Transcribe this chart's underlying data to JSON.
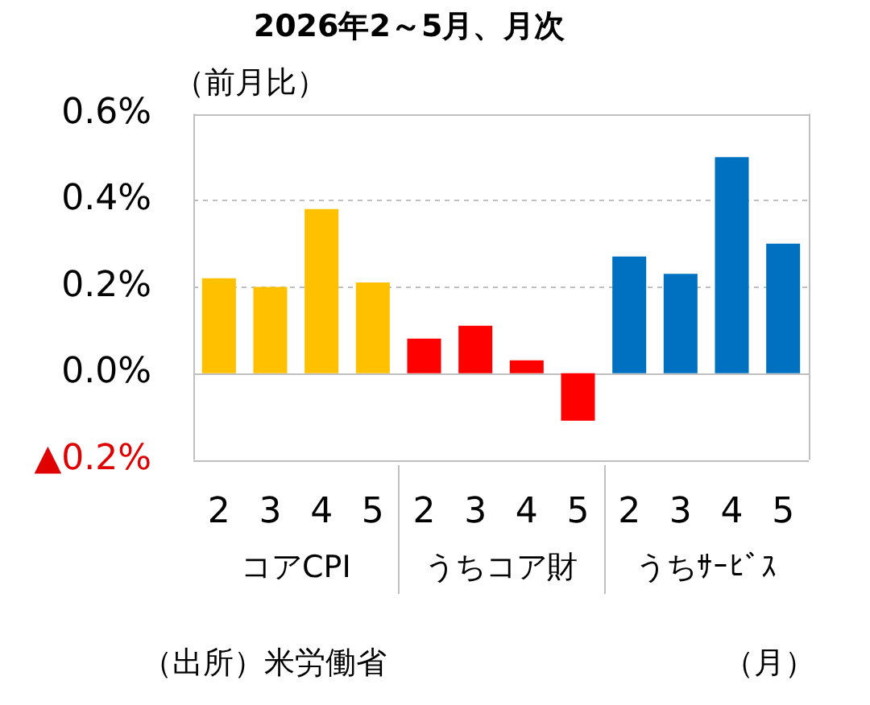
{
  "chart_data": {
    "type": "bar",
    "title": "2026年2～5月、月次",
    "ylabel": "（前月比）",
    "categories": [
      "2",
      "3",
      "4",
      "5",
      "2",
      "3",
      "4",
      "5",
      "2",
      "3",
      "4",
      "5"
    ],
    "values": [
      0.22,
      0.2,
      0.38,
      0.21,
      0.08,
      0.11,
      0.03,
      -0.11,
      0.27,
      0.23,
      0.5,
      0.3
    ],
    "colors": [
      "#ffc000",
      "#ffc000",
      "#ffc000",
      "#ffc000",
      "#ff0000",
      "#ff0000",
      "#ff0000",
      "#ff0000",
      "#0070c0",
      "#0070c0",
      "#0070c0",
      "#0070c0"
    ],
    "ylim": [
      -0.2,
      0.6
    ],
    "yticks": [
      {
        "value": -0.2,
        "label": "▲0.2%"
      },
      {
        "value": 0,
        "label": "0.0%"
      },
      {
        "value": 0.2,
        "label": "0.2%"
      },
      {
        "value": 0.4,
        "label": "0.4%"
      },
      {
        "value": 0.6,
        "label": "0.6%"
      }
    ],
    "grid": "y",
    "legend": false,
    "annotations": [
      "コアCPI",
      "うちコア財",
      "うちｻｰﾋﾞｽ",
      "（出所）米労働省",
      "（月）"
    ]
  }
}
